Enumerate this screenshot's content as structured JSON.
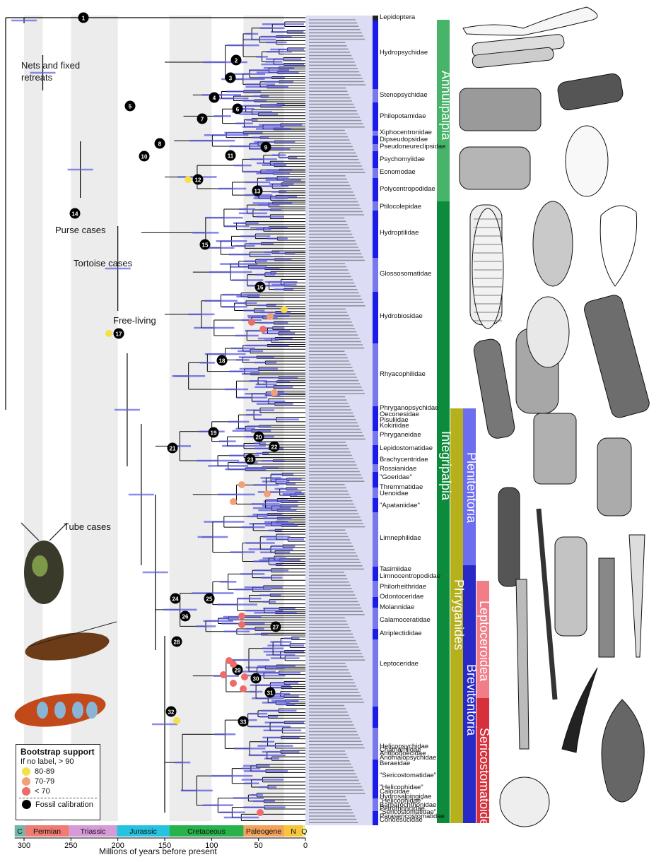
{
  "annotations": {
    "nets": "Nets and fixed\nretreats",
    "purse": "Purse cases",
    "tortoise": "Tortoise cases",
    "freeliving": "Free-living",
    "tube": "Tube cases"
  },
  "families": [
    "Lepidoptera",
    "Hydropsychidae",
    "Stenopsychidae",
    "Philopotamidae",
    "Xiphocentronidae",
    "Dipseudopsidae",
    "Pseudoneureclipsidae",
    "Psychomyiidae",
    "Ecnomodae",
    "Polycentropodidae",
    "Ptilocolepidae",
    "Hydroptilidae",
    "Glossosomatidae",
    "Hydrobiosidae",
    "Rhyacophilidae",
    "Phryganopsychidae",
    "Oeconesidae",
    "Pisuliidae",
    "Kokiriidae",
    "Phryganeidae",
    "Lepidostomatidae",
    "Brachycentridae",
    "Rossianidae",
    "\"Goeridae\"",
    "Thremmatidae",
    "Uenoidae",
    "\"Apataniidae\"",
    "Limnephilidae",
    "Tasimiidae",
    "Limnocentropodidae",
    "Philorheithridae",
    "Odontoceridae",
    "Molannidae",
    "Calamoceratidae",
    "Atriplectididae",
    "Leptoceridae",
    "Helicopsychidae",
    "Chathamiidae",
    "Antipodoecidae",
    "Anomalopsychidae",
    "Beraeidae",
    "\"Sericostomatidae\"",
    "\"Helicophidae\"",
    "Calocidae",
    "Hydrosalpingidae",
    "\"Helicophidae\"",
    "Barbarochthonidae",
    "Petrothrincidae",
    "\"Sericostomatidae\"",
    "Parasericostomatidae",
    "Conoesucidae"
  ],
  "clades": {
    "annulipalpia": "Annulipalpia",
    "integripalpia": "Integripalpia",
    "plenitentoria": "Plenitentoria",
    "phryganides": "Phryganides",
    "brevitentoria": "Brevitentoria",
    "leptoceroidea": "Leptoceroidea",
    "sericostomatoidea": "Sericostomatoidea"
  },
  "legend": {
    "title": "Bootstrap support",
    "subtitle": "If no label, > 90",
    "items": [
      {
        "label": "80-89",
        "color": "#f5e04b"
      },
      {
        "label": "70-79",
        "color": "#f2a078"
      },
      {
        "label": "< 70",
        "color": "#ec6b6b"
      }
    ],
    "fossil": "Fossil calibration"
  },
  "periods": [
    {
      "label": "C",
      "color": "#6fb8a9"
    },
    {
      "label": "Permian",
      "color": "#ef7b72"
    },
    {
      "label": "Triassic",
      "color": "#d79ad8"
    },
    {
      "label": "Jurassic",
      "color": "#26c3e0"
    },
    {
      "label": "Cretaceous",
      "color": "#27b24c"
    },
    {
      "label": "Paleogene",
      "color": "#f4a15b"
    },
    {
      "label": "N",
      "color": "#f6c53a"
    },
    {
      "label": "Q",
      "color": "#f4ee8f"
    }
  ],
  "axis": {
    "ticks": [
      "300",
      "250",
      "200",
      "150",
      "100",
      "50",
      "0"
    ],
    "title": "Millions of years before present"
  },
  "fossil_nodes": [
    "1",
    "2",
    "3",
    "4",
    "5",
    "6",
    "7",
    "8",
    "9",
    "10",
    "11",
    "12",
    "13",
    "14",
    "15",
    "16",
    "17",
    "18",
    "19",
    "20",
    "21",
    "22",
    "23",
    "24",
    "25",
    "26",
    "27",
    "28",
    "29",
    "30",
    "31",
    "32",
    "33"
  ]
}
